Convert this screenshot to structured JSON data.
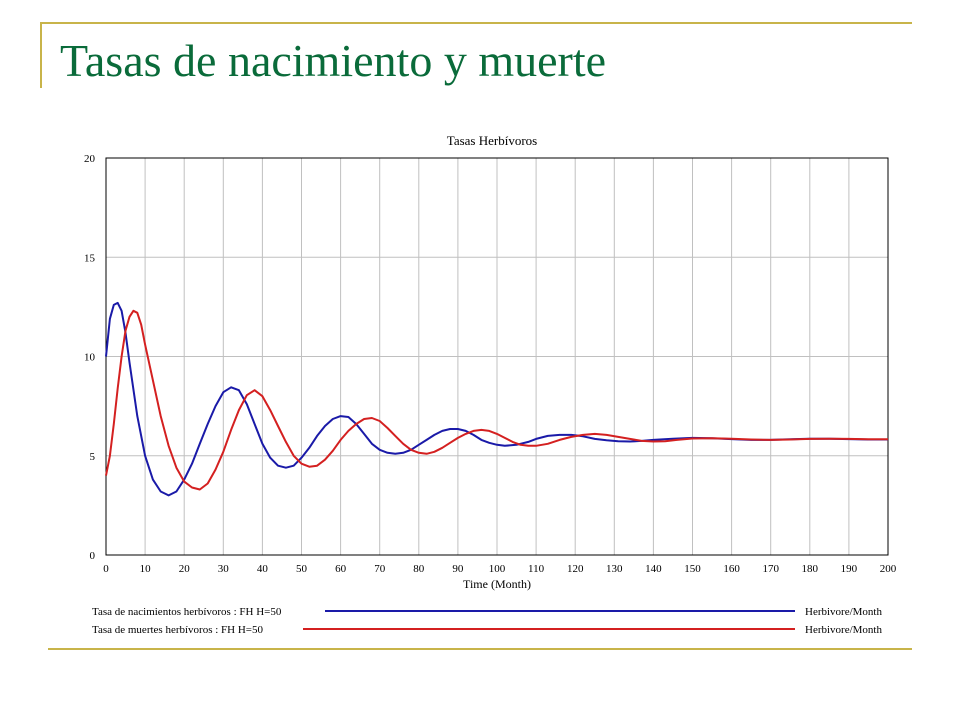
{
  "slide": {
    "title": "Tasas de nacimiento y muerte"
  },
  "colors": {
    "title": "#0a6b3a",
    "decoration": "#c8b44a",
    "births": "#1a1aa8",
    "deaths": "#d42020"
  },
  "chart_data": {
    "type": "line",
    "title": "Tasas Herbívoros",
    "xlabel": "Time (Month)",
    "ylabel": "",
    "xlim": [
      0,
      200
    ],
    "ylim": [
      0,
      20
    ],
    "x_ticks": [
      0,
      10,
      20,
      30,
      40,
      50,
      60,
      70,
      80,
      90,
      100,
      110,
      120,
      130,
      140,
      150,
      160,
      170,
      180,
      190,
      200
    ],
    "y_ticks": [
      0,
      5,
      10,
      15,
      20
    ],
    "grid": true,
    "legend_position": "bottom",
    "series": [
      {
        "name": "Tasa de nacimientos herbívoros : FH H=50",
        "unit": "Herbivore/Month",
        "color": "#1a1aa8",
        "points": [
          [
            0,
            10.0
          ],
          [
            1,
            11.9
          ],
          [
            2,
            12.6
          ],
          [
            3,
            12.7
          ],
          [
            4,
            12.3
          ],
          [
            5,
            11.2
          ],
          [
            6,
            9.7
          ],
          [
            8,
            7.0
          ],
          [
            10,
            5.0
          ],
          [
            12,
            3.8
          ],
          [
            14,
            3.2
          ],
          [
            16,
            3.0
          ],
          [
            18,
            3.2
          ],
          [
            20,
            3.8
          ],
          [
            22,
            4.6
          ],
          [
            24,
            5.6
          ],
          [
            26,
            6.6
          ],
          [
            28,
            7.5
          ],
          [
            30,
            8.2
          ],
          [
            32,
            8.45
          ],
          [
            34,
            8.3
          ],
          [
            36,
            7.6
          ],
          [
            38,
            6.6
          ],
          [
            40,
            5.6
          ],
          [
            42,
            4.9
          ],
          [
            44,
            4.5
          ],
          [
            46,
            4.4
          ],
          [
            48,
            4.5
          ],
          [
            50,
            4.9
          ],
          [
            52,
            5.4
          ],
          [
            54,
            6.0
          ],
          [
            56,
            6.5
          ],
          [
            58,
            6.85
          ],
          [
            60,
            7.0
          ],
          [
            62,
            6.95
          ],
          [
            64,
            6.6
          ],
          [
            66,
            6.1
          ],
          [
            68,
            5.6
          ],
          [
            70,
            5.3
          ],
          [
            72,
            5.15
          ],
          [
            74,
            5.1
          ],
          [
            76,
            5.15
          ],
          [
            78,
            5.3
          ],
          [
            80,
            5.55
          ],
          [
            82,
            5.8
          ],
          [
            84,
            6.05
          ],
          [
            86,
            6.25
          ],
          [
            88,
            6.35
          ],
          [
            90,
            6.35
          ],
          [
            92,
            6.25
          ],
          [
            94,
            6.05
          ],
          [
            96,
            5.8
          ],
          [
            98,
            5.65
          ],
          [
            100,
            5.55
          ],
          [
            102,
            5.5
          ],
          [
            105,
            5.55
          ],
          [
            108,
            5.7
          ],
          [
            110,
            5.85
          ],
          [
            113,
            6.0
          ],
          [
            116,
            6.05
          ],
          [
            119,
            6.05
          ],
          [
            122,
            5.98
          ],
          [
            125,
            5.85
          ],
          [
            128,
            5.78
          ],
          [
            131,
            5.73
          ],
          [
            134,
            5.72
          ],
          [
            137,
            5.75
          ],
          [
            140,
            5.8
          ],
          [
            145,
            5.86
          ],
          [
            150,
            5.9
          ],
          [
            155,
            5.88
          ],
          [
            160,
            5.84
          ],
          [
            165,
            5.8
          ],
          [
            170,
            5.8
          ],
          [
            175,
            5.83
          ],
          [
            180,
            5.86
          ],
          [
            185,
            5.86
          ],
          [
            190,
            5.84
          ],
          [
            195,
            5.82
          ],
          [
            200,
            5.82
          ]
        ]
      },
      {
        "name": "Tasa de muertes herbívoros : FH H=50",
        "unit": "Herbivore/Month",
        "color": "#d42020",
        "points": [
          [
            0,
            4.0
          ],
          [
            1,
            5.0
          ],
          [
            2,
            6.6
          ],
          [
            3,
            8.4
          ],
          [
            4,
            10.0
          ],
          [
            5,
            11.3
          ],
          [
            6,
            12.0
          ],
          [
            7,
            12.3
          ],
          [
            8,
            12.2
          ],
          [
            9,
            11.6
          ],
          [
            10,
            10.6
          ],
          [
            12,
            8.8
          ],
          [
            14,
            7.0
          ],
          [
            16,
            5.5
          ],
          [
            18,
            4.4
          ],
          [
            20,
            3.7
          ],
          [
            22,
            3.4
          ],
          [
            24,
            3.3
          ],
          [
            26,
            3.6
          ],
          [
            28,
            4.3
          ],
          [
            30,
            5.2
          ],
          [
            32,
            6.3
          ],
          [
            34,
            7.3
          ],
          [
            36,
            8.05
          ],
          [
            38,
            8.3
          ],
          [
            40,
            8.0
          ],
          [
            42,
            7.3
          ],
          [
            44,
            6.5
          ],
          [
            46,
            5.7
          ],
          [
            48,
            5.0
          ],
          [
            50,
            4.6
          ],
          [
            52,
            4.45
          ],
          [
            54,
            4.5
          ],
          [
            56,
            4.8
          ],
          [
            58,
            5.25
          ],
          [
            60,
            5.8
          ],
          [
            62,
            6.25
          ],
          [
            64,
            6.6
          ],
          [
            66,
            6.85
          ],
          [
            68,
            6.9
          ],
          [
            70,
            6.75
          ],
          [
            72,
            6.4
          ],
          [
            74,
            6.0
          ],
          [
            76,
            5.6
          ],
          [
            78,
            5.3
          ],
          [
            80,
            5.15
          ],
          [
            82,
            5.1
          ],
          [
            84,
            5.2
          ],
          [
            86,
            5.4
          ],
          [
            88,
            5.65
          ],
          [
            90,
            5.9
          ],
          [
            92,
            6.1
          ],
          [
            94,
            6.25
          ],
          [
            96,
            6.3
          ],
          [
            98,
            6.25
          ],
          [
            100,
            6.1
          ],
          [
            102,
            5.9
          ],
          [
            104,
            5.7
          ],
          [
            106,
            5.55
          ],
          [
            108,
            5.5
          ],
          [
            110,
            5.5
          ],
          [
            113,
            5.6
          ],
          [
            116,
            5.8
          ],
          [
            119,
            5.95
          ],
          [
            122,
            6.05
          ],
          [
            125,
            6.1
          ],
          [
            128,
            6.05
          ],
          [
            131,
            5.95
          ],
          [
            134,
            5.85
          ],
          [
            137,
            5.75
          ],
          [
            140,
            5.72
          ],
          [
            143,
            5.73
          ],
          [
            146,
            5.8
          ],
          [
            150,
            5.87
          ],
          [
            155,
            5.88
          ],
          [
            160,
            5.86
          ],
          [
            165,
            5.82
          ],
          [
            170,
            5.8
          ],
          [
            175,
            5.82
          ],
          [
            180,
            5.85
          ],
          [
            185,
            5.86
          ],
          [
            190,
            5.85
          ],
          [
            195,
            5.83
          ],
          [
            200,
            5.83
          ]
        ]
      }
    ]
  }
}
